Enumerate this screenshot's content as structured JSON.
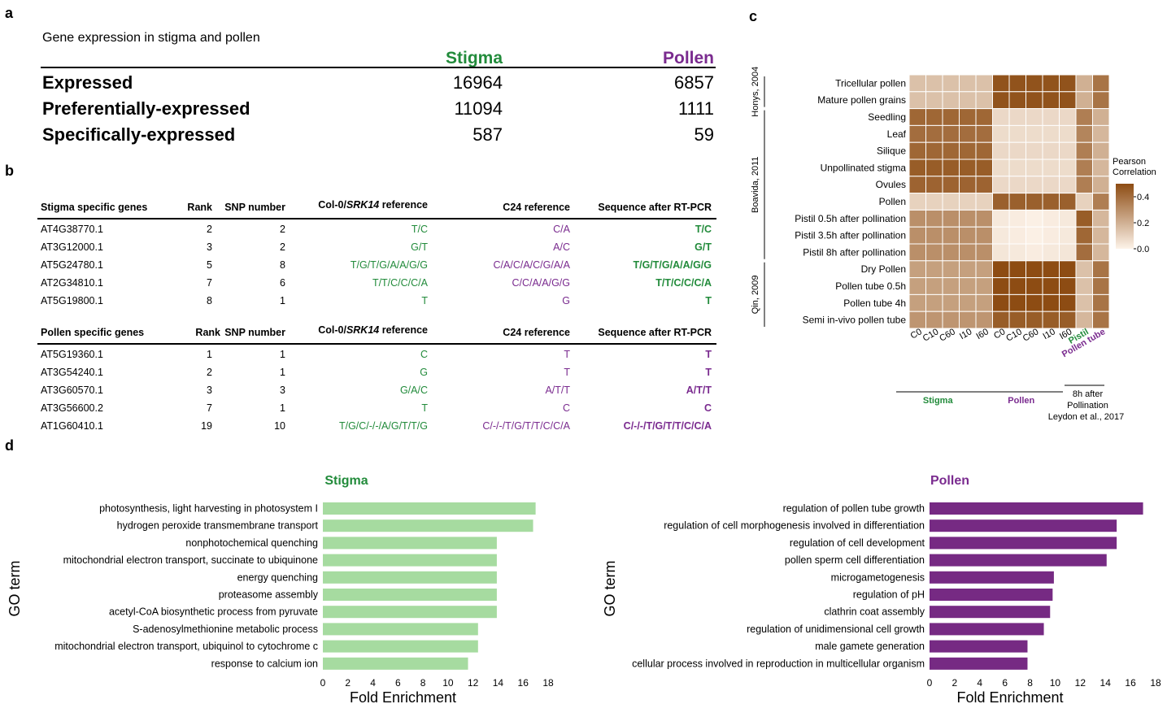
{
  "panels": {
    "a": "a",
    "b": "b",
    "c": "c",
    "d": "d"
  },
  "colors": {
    "green": "#228b3b",
    "purple": "#7a2b8f",
    "bar_green": "#a6dba0",
    "bar_purple": "#762a83"
  },
  "table_a": {
    "caption": "Gene expression in stigma and pollen",
    "col_stigma": "Stigma",
    "col_pollen": "Pollen",
    "rows": [
      {
        "label": "Expressed",
        "stigma": "16964",
        "pollen": "6857"
      },
      {
        "label": "Preferentially-expressed",
        "stigma": "11094",
        "pollen": "1111"
      },
      {
        "label": "Specifically-expressed",
        "stigma": "587",
        "pollen": "59"
      }
    ]
  },
  "table_b": {
    "stigma_header": {
      "gene": "Stigma specific genes",
      "rank": "Rank",
      "snp": "SNP number",
      "col_pre": "Col-0/",
      "col_em": "SRK14",
      "col_post": " reference",
      "c24": "C24 reference",
      "seq": "Sequence after RT-PCR"
    },
    "stigma_rows": [
      {
        "gene": "AT4G38770.1",
        "rank": "2",
        "snp": "2",
        "col": "T/C",
        "c24": "C/A",
        "seq": "T/C"
      },
      {
        "gene": "AT3G12000.1",
        "rank": "3",
        "snp": "2",
        "col": "G/T",
        "c24": "A/C",
        "seq": "G/T"
      },
      {
        "gene": "AT5G24780.1",
        "rank": "5",
        "snp": "8",
        "col": "T/G/T/G/A/A/G/G",
        "c24": "C/A/C/A/C/G/A/A",
        "seq": "T/G/T/G/A/A/G/G"
      },
      {
        "gene": "AT2G34810.1",
        "rank": "7",
        "snp": "6",
        "col": "T/T/C/C/C/A",
        "c24": "C/C/A/A/G/G",
        "seq": "T/T/C/C/C/A"
      },
      {
        "gene": "AT5G19800.1",
        "rank": "8",
        "snp": "1",
        "col": "T",
        "c24": "G",
        "seq": "T"
      }
    ],
    "pollen_header": {
      "gene": "Pollen specific genes",
      "rank": "Rank",
      "snp": "SNP number",
      "col_pre": "Col-0/",
      "col_em": "SRK14",
      "col_post": " reference",
      "c24": "C24 reference",
      "seq": "Sequence  after RT-PCR"
    },
    "pollen_rows": [
      {
        "gene": "AT5G19360.1",
        "rank": "1",
        "snp": "1",
        "col": "C",
        "c24": "T",
        "seq": "T"
      },
      {
        "gene": "AT3G54240.1",
        "rank": "2",
        "snp": "1",
        "col": "G",
        "c24": "T",
        "seq": "T"
      },
      {
        "gene": "AT3G60570.1",
        "rank": "3",
        "snp": "3",
        "col": "G/A/C",
        "c24": "A/T/T",
        "seq": "A/T/T"
      },
      {
        "gene": "AT3G56600.2",
        "rank": "7",
        "snp": "1",
        "col": "T",
        "c24": "C",
        "seq": "C"
      },
      {
        "gene": "AT1G60410.1",
        "rank": "19",
        "snp": "10",
        "col": "T/G/C/-/-/A/G/T/T/G",
        "c24": "C/-/-/T/G/T/T/C/C/A",
        "seq": "C/-/-/T/G/T/T/C/C/A"
      }
    ]
  },
  "chart_data": [
    {
      "type": "heatmap",
      "rows": [
        "Tricellular pollen",
        "Mature pollen grains",
        "Seedling",
        "Leaf",
        "Silique",
        "Unpollinated stigma",
        "Ovules",
        "Pollen",
        "Pistil 0.5h after pollination",
        "Pistil 3.5h after pollination",
        "Pistil 8h after pollination",
        "Dry Pollen",
        "Pollen tube 0.5h",
        "Pollen tube 4h",
        "Semi in-vivo pollen tube"
      ],
      "columns": [
        "C0",
        "C10",
        "C60",
        "I10",
        "I60",
        "C0",
        "C10",
        "C60",
        "I10",
        "I60",
        "Pistil",
        "Pollen tube"
      ],
      "row_groups": [
        {
          "label": "Honys, 2004",
          "rows": [
            0,
            1
          ]
        },
        {
          "label": "Boavida, 2011",
          "rows": [
            2,
            10
          ]
        },
        {
          "label": "Qin, 2009",
          "rows": [
            11,
            14
          ]
        }
      ],
      "column_groups": [
        {
          "label": "Stigma",
          "cols": [
            0,
            4
          ]
        },
        {
          "label": "Pollen",
          "cols": [
            5,
            9
          ]
        },
        {
          "label": "8h after\nPollination",
          "cols": [
            10,
            11
          ]
        }
      ],
      "group_lines": {
        "stigma": "Stigma",
        "pollen": "Pollen",
        "after_1": "8h after",
        "after_2": "Pollination",
        "citation": "Leydon et al., 2017"
      },
      "legend": {
        "title_1": "Pearson",
        "title_2": "Correlation",
        "ticks": [
          0.4,
          0.2,
          0.0
        ],
        "range": [
          0,
          0.5
        ]
      },
      "values": [
        [
          0.15,
          0.15,
          0.15,
          0.15,
          0.15,
          0.48,
          0.48,
          0.48,
          0.48,
          0.48,
          0.2,
          0.38
        ],
        [
          0.15,
          0.15,
          0.15,
          0.15,
          0.15,
          0.48,
          0.48,
          0.48,
          0.48,
          0.48,
          0.2,
          0.38
        ],
        [
          0.42,
          0.42,
          0.42,
          0.42,
          0.42,
          0.08,
          0.08,
          0.08,
          0.08,
          0.08,
          0.35,
          0.2
        ],
        [
          0.4,
          0.4,
          0.4,
          0.4,
          0.4,
          0.07,
          0.07,
          0.07,
          0.07,
          0.07,
          0.33,
          0.18
        ],
        [
          0.42,
          0.42,
          0.42,
          0.42,
          0.42,
          0.08,
          0.08,
          0.08,
          0.08,
          0.08,
          0.35,
          0.2
        ],
        [
          0.45,
          0.45,
          0.45,
          0.45,
          0.45,
          0.07,
          0.07,
          0.07,
          0.07,
          0.07,
          0.35,
          0.18
        ],
        [
          0.43,
          0.43,
          0.43,
          0.43,
          0.43,
          0.08,
          0.08,
          0.08,
          0.08,
          0.08,
          0.35,
          0.2
        ],
        [
          0.1,
          0.1,
          0.1,
          0.1,
          0.1,
          0.44,
          0.44,
          0.44,
          0.44,
          0.44,
          0.1,
          0.35
        ],
        [
          0.3,
          0.3,
          0.3,
          0.3,
          0.3,
          0.03,
          0.02,
          0.01,
          0.02,
          0.03,
          0.45,
          0.18
        ],
        [
          0.3,
          0.3,
          0.3,
          0.3,
          0.3,
          0.03,
          0.02,
          0.01,
          0.02,
          0.03,
          0.42,
          0.18
        ],
        [
          0.3,
          0.3,
          0.3,
          0.3,
          0.3,
          0.04,
          0.03,
          0.02,
          0.03,
          0.04,
          0.4,
          0.18
        ],
        [
          0.25,
          0.25,
          0.25,
          0.25,
          0.25,
          0.52,
          0.52,
          0.52,
          0.52,
          0.52,
          0.15,
          0.38
        ],
        [
          0.25,
          0.25,
          0.25,
          0.25,
          0.25,
          0.52,
          0.52,
          0.52,
          0.52,
          0.52,
          0.15,
          0.38
        ],
        [
          0.25,
          0.25,
          0.25,
          0.25,
          0.25,
          0.52,
          0.52,
          0.52,
          0.52,
          0.52,
          0.15,
          0.38
        ],
        [
          0.28,
          0.28,
          0.28,
          0.28,
          0.28,
          0.45,
          0.45,
          0.45,
          0.45,
          0.45,
          0.18,
          0.38
        ]
      ]
    },
    {
      "type": "bar",
      "orientation": "horizontal",
      "title": "Stigma",
      "xlabel": "Fold Enrichment",
      "ylabel": "GO term",
      "xlim": [
        0,
        18
      ],
      "xticks": [
        0,
        2,
        4,
        6,
        8,
        10,
        12,
        14,
        16,
        18
      ],
      "categories": [
        "photosynthesis, light harvesting in photosystem I",
        "hydrogen peroxide transmembrane transport",
        "nonphotochemical quenching",
        "mitochondrial electron transport, succinate to ubiquinone",
        "energy quenching",
        "proteasome assembly",
        "acetyl-CoA biosynthetic process from pyruvate",
        "S-adenosylmethionine metabolic process",
        "mitochondrial electron transport, ubiquinol to cytochrome c",
        "response to calcium ion"
      ],
      "values": [
        17.0,
        16.8,
        13.9,
        13.9,
        13.9,
        13.9,
        13.9,
        12.4,
        12.4,
        11.6
      ]
    },
    {
      "type": "bar",
      "orientation": "horizontal",
      "title": "Pollen",
      "xlabel": "Fold Enrichment",
      "ylabel": "GO term",
      "xlim": [
        0,
        18
      ],
      "xticks": [
        0,
        2,
        4,
        6,
        8,
        10,
        12,
        14,
        16,
        18
      ],
      "categories": [
        "regulation of pollen tube growth",
        "regulation of cell morphogenesis involved in differentiation",
        "regulation of cell development",
        "pollen sperm cell differentiation",
        "microgametogenesis",
        "regulation of pH",
        "clathrin coat assembly",
        "regulation of unidimensional cell growth",
        "male gamete generation",
        "cellular process involved in reproduction in multicellular organism"
      ],
      "values": [
        17.0,
        14.9,
        14.9,
        14.1,
        9.9,
        9.8,
        9.6,
        9.1,
        7.8,
        7.8
      ]
    }
  ]
}
